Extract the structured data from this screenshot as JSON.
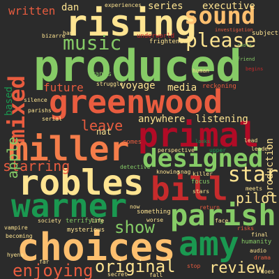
{
  "background": "#2b2b2b",
  "words": [
    {
      "text": "produced",
      "color": "#86cb66",
      "rotate": 0
    },
    {
      "text": "rising",
      "color": "#fee491",
      "rotate": 0
    },
    {
      "text": "greenwood",
      "color": "#e95c3f",
      "rotate": 0
    },
    {
      "text": "primal",
      "color": "#b10b26",
      "rotate": 0
    },
    {
      "text": "miller",
      "color": "#f47d4a",
      "rotate": 0
    },
    {
      "text": "robles",
      "color": "#fee491",
      "rotate": 0
    },
    {
      "text": "bill",
      "color": "#c62b2c",
      "rotate": 0
    },
    {
      "text": "designed",
      "color": "#86cb66",
      "rotate": 0
    },
    {
      "text": "warner",
      "color": "#1a9850",
      "rotate": 0
    },
    {
      "text": "parish",
      "color": "#86cb66",
      "rotate": 0
    },
    {
      "text": "choices",
      "color": "#fdbf6f",
      "rotate": 0
    },
    {
      "text": "amy",
      "color": "#1a9850",
      "rotate": 0
    },
    {
      "text": "sound",
      "color": "#fdbf6f",
      "rotate": 0
    },
    {
      "text": "mixed",
      "color": "#e95c3f",
      "rotate": -90
    },
    {
      "text": "music",
      "color": "#86cb66",
      "rotate": 0
    },
    {
      "text": "please",
      "color": "#fee491",
      "rotate": 0
    },
    {
      "text": "star",
      "color": "#fee491",
      "rotate": 0
    },
    {
      "text": "show",
      "color": "#86cb66",
      "rotate": 0
    },
    {
      "text": "enjoying",
      "color": "#e95c3f",
      "rotate": 0
    },
    {
      "text": "original",
      "color": "#fee491",
      "rotate": 0
    },
    {
      "text": "review",
      "color": "#fee491",
      "rotate": 0
    },
    {
      "text": "pilot",
      "color": "#fee491",
      "rotate": 0
    },
    {
      "text": "leave",
      "color": "#e95c3f",
      "rotate": 0
    },
    {
      "text": "starring",
      "color": "#e95c3f",
      "rotate": 0
    },
    {
      "text": "apple",
      "color": "#86cb66",
      "rotate": -90
    },
    {
      "text": "written",
      "color": "#e95c3f",
      "rotate": 0
    },
    {
      "text": "dan",
      "color": "#fee491",
      "rotate": 0
    },
    {
      "text": "series",
      "color": "#fee491",
      "rotate": 0
    },
    {
      "text": "executive",
      "color": "#fee491",
      "rotate": 0
    },
    {
      "text": "future",
      "color": "#e95c3f",
      "rotate": 0
    },
    {
      "text": "voyage",
      "color": "#fee491",
      "rotate": 0
    },
    {
      "text": "media",
      "color": "#fee491",
      "rotate": 0
    },
    {
      "text": "anywhere",
      "color": "#fee491",
      "rotate": 0
    },
    {
      "text": "listening",
      "color": "#fee491",
      "rotate": 0
    },
    {
      "text": "production",
      "color": "#fee491",
      "rotate": -90
    },
    {
      "text": "nat",
      "color": "#fee491",
      "rotate": 0
    },
    {
      "text": "based",
      "color": "#1a9850",
      "rotate": -90
    },
    {
      "text": "experiences",
      "color": "#fee491",
      "rotate": 0
    },
    {
      "text": "hand",
      "color": "#fee491",
      "rotate": 0
    },
    {
      "text": "underworld",
      "color": "#c62b2c",
      "rotate": 0
    },
    {
      "text": "frightening",
      "color": "#fee491",
      "rotate": 0
    },
    {
      "text": "bizarre",
      "color": "#fee491",
      "rotate": 0
    },
    {
      "text": "subject",
      "color": "#fee491",
      "rotate": 0
    },
    {
      "text": "wants",
      "color": "#86cb66",
      "rotate": 0
    },
    {
      "text": "struggle",
      "color": "#fee491",
      "rotate": 0
    },
    {
      "text": "human",
      "color": "#fee491",
      "rotate": 0
    },
    {
      "text": "reckoning",
      "color": "#e95c3f",
      "rotate": 0
    },
    {
      "text": "silence",
      "color": "#fee491",
      "rotate": 0
    },
    {
      "text": "parishs",
      "color": "#fee491",
      "rotate": 0
    },
    {
      "text": "serial",
      "color": "#fee491",
      "rotate": 0
    },
    {
      "text": "lead",
      "color": "#fee491",
      "rotate": 0
    },
    {
      "text": "perspective",
      "color": "#fee491",
      "rotate": 0
    },
    {
      "text": "upper",
      "color": "#1a9850",
      "rotate": 0
    },
    {
      "text": "leader",
      "color": "#fee491",
      "rotate": 0
    },
    {
      "text": "comes",
      "color": "#e95c3f",
      "rotate": 0
    },
    {
      "text": "detective",
      "color": "#86cb66",
      "rotate": 0
    },
    {
      "text": "knowing",
      "color": "#fee491",
      "rotate": 0
    },
    {
      "text": "snag",
      "color": "#fee491",
      "rotate": 0
    },
    {
      "text": "killer",
      "color": "#fee491",
      "rotate": 0
    },
    {
      "text": "focus",
      "color": "#86cb66",
      "rotate": 0
    },
    {
      "text": "stars",
      "color": "#fee491",
      "rotate": 0
    },
    {
      "text": "meets",
      "color": "#fee491",
      "rotate": 0
    },
    {
      "text": "something",
      "color": "#fee491",
      "rotate": 0
    },
    {
      "text": "return",
      "color": "#e95c3f",
      "rotate": 0
    },
    {
      "text": "now",
      "color": "#fee491",
      "rotate": 0
    },
    {
      "text": "face",
      "color": "#fee491",
      "rotate": 0
    },
    {
      "text": "society",
      "color": "#fee491",
      "rotate": 0
    },
    {
      "text": "terrifying",
      "color": "#86cb66",
      "rotate": 0
    },
    {
      "text": "life",
      "color": "#fee491",
      "rotate": 0
    },
    {
      "text": "worse",
      "color": "#fee491",
      "rotate": 0
    },
    {
      "text": "vampire",
      "color": "#fee491",
      "rotate": 0
    },
    {
      "text": "becoming",
      "color": "#fee491",
      "rotate": 0
    },
    {
      "text": "mysterious",
      "color": "#fee491",
      "rotate": 0
    },
    {
      "text": "final",
      "color": "#fee491",
      "rotate": 0
    },
    {
      "text": "audio",
      "color": "#fee491",
      "rotate": 0
    },
    {
      "text": "humanity",
      "color": "#86cb66",
      "rotate": 0
    },
    {
      "text": "drama",
      "color": "#e95c3f",
      "rotate": 0
    },
    {
      "text": "hyena",
      "color": "#fee491",
      "rotate": 0
    },
    {
      "text": "far",
      "color": "#fee491",
      "rotate": 0
    },
    {
      "text": "stop",
      "color": "#e95c3f",
      "rotate": 0
    },
    {
      "text": "secret",
      "color": "#fee491",
      "rotate": 0
    },
    {
      "text": "fall",
      "color": "#fee491",
      "rotate": 0
    },
    {
      "text": "does",
      "color": "#fee491",
      "rotate": 0
    },
    {
      "text": "risks",
      "color": "#e95c3f",
      "rotate": 0
    },
    {
      "text": "investigation",
      "color": "#e95c3f",
      "rotate": 0
    },
    {
      "text": "roots",
      "color": "#86cb66",
      "rotate": 0
    },
    {
      "text": "friend",
      "color": "#86cb66",
      "rotate": 0
    },
    {
      "text": "begins",
      "color": "#c62b2c",
      "rotate": 0
    },
    {
      "text": "looks",
      "color": "#1a9850",
      "rotate": 0
    }
  ]
}
